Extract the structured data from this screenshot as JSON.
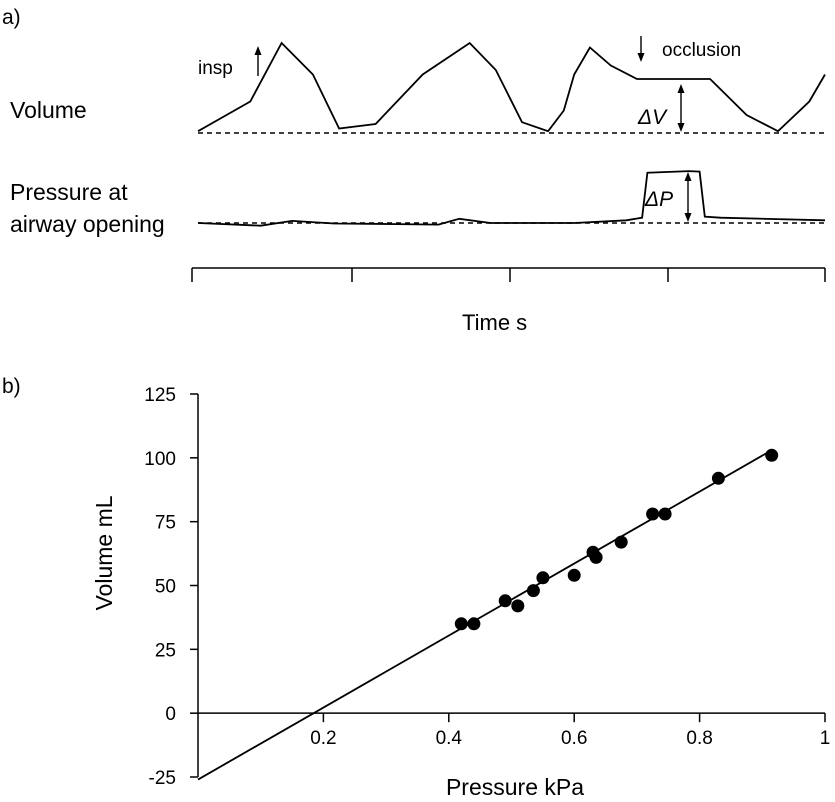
{
  "panel_a": {
    "label": "a)",
    "volume_label": "Volume",
    "pressure_label_line1": "Pressure at",
    "pressure_label_line2": "airway opening",
    "insp_label": "insp",
    "occlusion_label": "occlusion",
    "delta_v_label": "ΔV",
    "delta_p_label": "ΔP",
    "xlabel": "Time s"
  },
  "panel_b": {
    "label": "b)"
  },
  "chart_data": [
    {
      "type": "line",
      "title": "",
      "xlabel": "Time s",
      "series": [
        {
          "name": "Volume",
          "x": [
            0,
            0.5,
            0.8,
            1.1,
            1.35,
            1.7,
            2.15,
            2.6,
            2.85,
            3.1,
            3.35,
            3.5,
            3.6,
            3.75,
            3.95,
            4.2,
            4.55,
            4.9,
            5.25,
            5.55,
            5.85,
            6.0
          ],
          "y": [
            0.02,
            0.35,
            1.0,
            0.65,
            0.05,
            0.1,
            0.65,
            1.0,
            0.7,
            0.12,
            0.02,
            0.25,
            0.65,
            0.95,
            0.75,
            0.6,
            0.6,
            0.6,
            0.2,
            0.02,
            0.35,
            0.65
          ]
        },
        {
          "name": "Pressure at airway opening",
          "x": [
            0,
            0.6,
            0.9,
            1.3,
            1.9,
            2.3,
            2.5,
            2.8,
            3.3,
            3.6,
            4.1,
            4.25,
            4.3,
            4.7,
            4.8,
            4.85,
            5.0,
            6.0
          ],
          "y": [
            0.0,
            -0.05,
            0.04,
            -0.01,
            -0.02,
            -0.03,
            0.08,
            0.0,
            0.0,
            0.0,
            0.05,
            0.1,
            0.95,
            0.98,
            0.97,
            0.12,
            0.1,
            0.05
          ]
        }
      ],
      "grid": false,
      "legend": "none"
    },
    {
      "type": "scatter",
      "title": "",
      "xlabel": "Pressure kPa",
      "ylabel": "Volume mL",
      "xlim": [
        0,
        1
      ],
      "ylim": [
        -25,
        125
      ],
      "x_ticks": [
        0.2,
        0.4,
        0.6,
        0.8,
        1
      ],
      "x_tick_labels": [
        "0.2",
        "0.4",
        "0.6",
        "0.8",
        "1"
      ],
      "y_ticks": [
        -25,
        0,
        25,
        50,
        75,
        100,
        125
      ],
      "y_tick_labels": [
        "-25",
        "0",
        "25",
        "50",
        "75",
        "100",
        "125"
      ],
      "series": [
        {
          "x": [
            0.42,
            0.44,
            0.49,
            0.51,
            0.535,
            0.55,
            0.6,
            0.63,
            0.635,
            0.675,
            0.725,
            0.745,
            0.83,
            0.915
          ],
          "y": [
            35,
            35,
            44,
            42,
            48,
            53,
            54,
            63,
            61,
            67,
            78,
            78,
            92,
            101
          ]
        }
      ],
      "fit_line": {
        "x": [
          0,
          0.915
        ],
        "y": [
          -26,
          103
        ]
      },
      "grid": false,
      "legend": "none"
    }
  ]
}
